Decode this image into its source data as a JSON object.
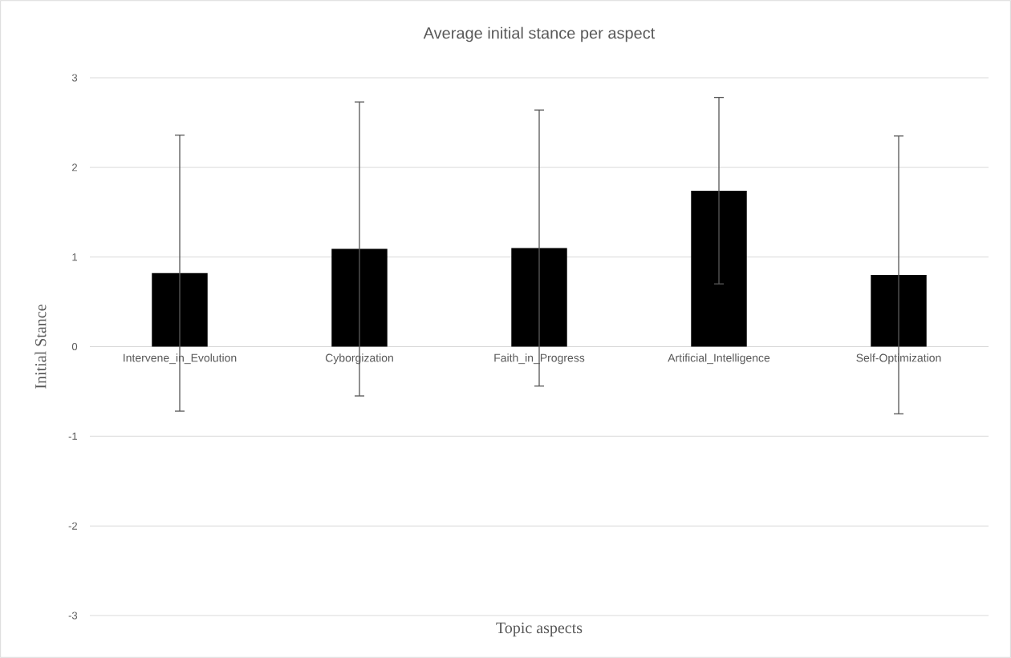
{
  "chart_data": {
    "type": "bar",
    "title": "Average initial stance per aspect",
    "xlabel": "Topic aspects",
    "ylabel": "Initial Stance",
    "categories": [
      "Intervene_in_Evolution",
      "Cyborgization",
      "Faith_in_Progress",
      "Artificial_Intelligence",
      "Self-Optimization"
    ],
    "values": [
      0.82,
      1.09,
      1.1,
      1.74,
      0.8
    ],
    "errors": [
      1.54,
      1.64,
      1.54,
      1.04,
      1.55
    ],
    "color": "#000000",
    "ylim": [
      -3,
      3
    ],
    "yticks": [
      -3,
      -2,
      -1,
      0,
      1,
      2,
      3
    ],
    "grid": "y"
  }
}
